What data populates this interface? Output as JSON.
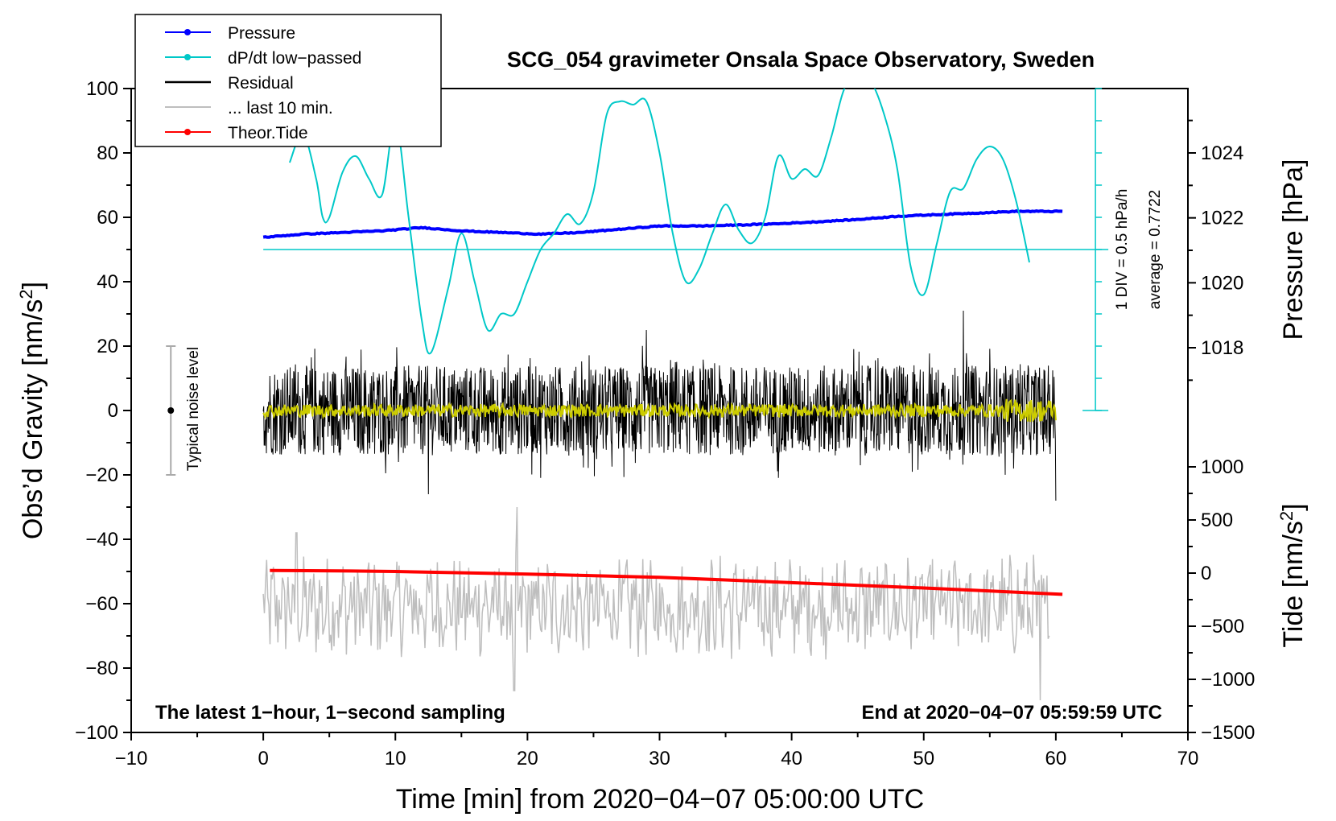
{
  "chart_data": {
    "type": "line",
    "title": "SCG_054 gravimeter Onsala Space Observatory, Sweden",
    "xlabel": "Time [min] from 2020−04−07 05:00:00 UTC",
    "ylabel_left": "Obs’d Gravity [nm/s",
    "ylabel_left_sup": "2",
    "ylabel_left_close": "]",
    "ylabel_right_top": "Pressure [hPa]",
    "ylabel_right_bottom": "Tide [nm/s",
    "ylabel_right_bottom_sup": "2",
    "ylabel_right_bottom_close": "]",
    "footer_left": "The latest 1−hour, 1−second sampling",
    "footer_right": "End at 2020−04−07 05:59:59 UTC",
    "xlim": [
      -10,
      70
    ],
    "ylim_left": [
      -100,
      100
    ],
    "pressure_axis": {
      "min": 1016,
      "max": 1026,
      "ticks": [
        1018,
        1020,
        1022,
        1024
      ]
    },
    "tide_axis": {
      "min": -1500,
      "max": 1500,
      "ticks": [
        -1500,
        -1000,
        -500,
        0,
        500,
        1000
      ]
    },
    "x_ticks": [
      -10,
      0,
      10,
      20,
      30,
      40,
      50,
      60,
      70
    ],
    "x_tick_labels": [
      "−10",
      "0",
      "10",
      "20",
      "30",
      "40",
      "50",
      "60",
      "70"
    ],
    "y_left_ticks": [
      -100,
      -80,
      -60,
      -40,
      -20,
      0,
      20,
      40,
      60,
      80,
      100
    ],
    "y_left_tick_labels": [
      "−100",
      "−80",
      "−60",
      "−40",
      "−20",
      "0",
      "20",
      "40",
      "60",
      "80",
      "100"
    ],
    "y_pressure_tick_labels": [
      "1018",
      "1020",
      "1022",
      "1024"
    ],
    "y_tide_tick_labels": [
      "−1500",
      "−1000",
      "−500",
      "0",
      "500",
      "1000"
    ],
    "legend": [
      {
        "label": "Pressure",
        "color": "#0000ff",
        "marker": true
      },
      {
        "label": "dP/dt low−passed",
        "color": "#00c8c8",
        "marker": true
      },
      {
        "label": "Residual",
        "color": "#000000",
        "marker": false
      },
      {
        "label": "... last 10 min.",
        "color": "#bebebe",
        "marker": false
      },
      {
        "label": "Theor.Tide",
        "color": "#ff0000",
        "marker": true
      }
    ],
    "dpdt_scale_label": "1 DIV = 0.5 hPa/h",
    "dpdt_average_label": "average = 0.7722",
    "noise_label": "Typical noise level",
    "noise_bar": {
      "x": -7,
      "center": 0,
      "half_range": 20
    },
    "dpdt_zero_line_y": 50,
    "dpdt_scale_bar": {
      "x": 63,
      "y_bottom": 0,
      "y_top": 100,
      "tick_step": 10
    },
    "series": [
      {
        "name": "Pressure",
        "color": "#0000ff",
        "axis": "pressure",
        "x": [
          0,
          3,
          6,
          9,
          12,
          15,
          18,
          21,
          24,
          27,
          30,
          33,
          36,
          39,
          42,
          45,
          48,
          51,
          54,
          57,
          60.5
        ],
        "values": [
          1021.4,
          1021.5,
          1021.55,
          1021.6,
          1021.7,
          1021.6,
          1021.55,
          1021.5,
          1021.55,
          1021.65,
          1021.75,
          1021.75,
          1021.78,
          1021.82,
          1021.88,
          1021.95,
          1022.05,
          1022.1,
          1022.15,
          1022.2,
          1022.2
        ]
      },
      {
        "name": "dP/dt low-passed",
        "color": "#00c8c8",
        "axis": "left",
        "x": [
          2,
          3,
          4,
          4.5,
          5,
          6,
          7,
          8,
          9,
          10,
          11,
          12,
          12.7,
          14,
          15,
          16,
          17,
          18,
          19,
          20,
          21,
          22,
          23,
          24,
          25,
          26,
          27,
          28,
          29,
          30,
          31,
          32,
          33,
          34,
          35,
          36,
          37,
          38,
          39,
          40,
          41,
          42,
          43,
          44,
          45,
          46,
          47,
          48,
          49,
          50,
          51,
          52,
          53,
          54,
          55,
          56,
          57,
          58
        ],
        "values": [
          77,
          86,
          72,
          60,
          60,
          74,
          79,
          72,
          67,
          90,
          60,
          28,
          18,
          38,
          55,
          40,
          25,
          30,
          30,
          40,
          50,
          55,
          61,
          58,
          68,
          92,
          96,
          95,
          96,
          80,
          55,
          40,
          44,
          55,
          64,
          56,
          52,
          60,
          79,
          72,
          75,
          73,
          85,
          100,
          102,
          102,
          92,
          75,
          45,
          36,
          52,
          68,
          69,
          78,
          82,
          78,
          65,
          46
        ]
      },
      {
        "name": "Residual",
        "color": "#000000",
        "axis": "left",
        "x_range": [
          0,
          60
        ],
        "amplitude": 14,
        "peaks": [
          {
            "x": 12.5,
            "y": 23
          },
          {
            "x": 29,
            "y": 25
          },
          {
            "x": 53,
            "y": 31
          },
          {
            "x": 60,
            "y": -28
          },
          {
            "x": 12.5,
            "y": -26
          }
        ]
      },
      {
        "name": "Smoothed residual",
        "color": "#cccc00",
        "axis": "left",
        "x_range": [
          0,
          60
        ],
        "amplitude": 2
      },
      {
        "name": "... last 10 min.",
        "color": "#bebebe",
        "axis": "left",
        "x_range": [
          0,
          59.5
        ],
        "center": -61,
        "amplitude": 13,
        "peaks": [
          {
            "x": 19.2,
            "y": -30
          },
          {
            "x": 19,
            "y": -87
          },
          {
            "x": 58.8,
            "y": -90
          },
          {
            "x": 2.5,
            "y": -38
          }
        ]
      },
      {
        "name": "Theor.Tide",
        "color": "#ff0000",
        "axis": "tide",
        "x": [
          0.5,
          10,
          20,
          30,
          40,
          50,
          60.5
        ],
        "values": [
          25,
          15,
          -10,
          -40,
          -90,
          -140,
          -200
        ]
      }
    ]
  }
}
